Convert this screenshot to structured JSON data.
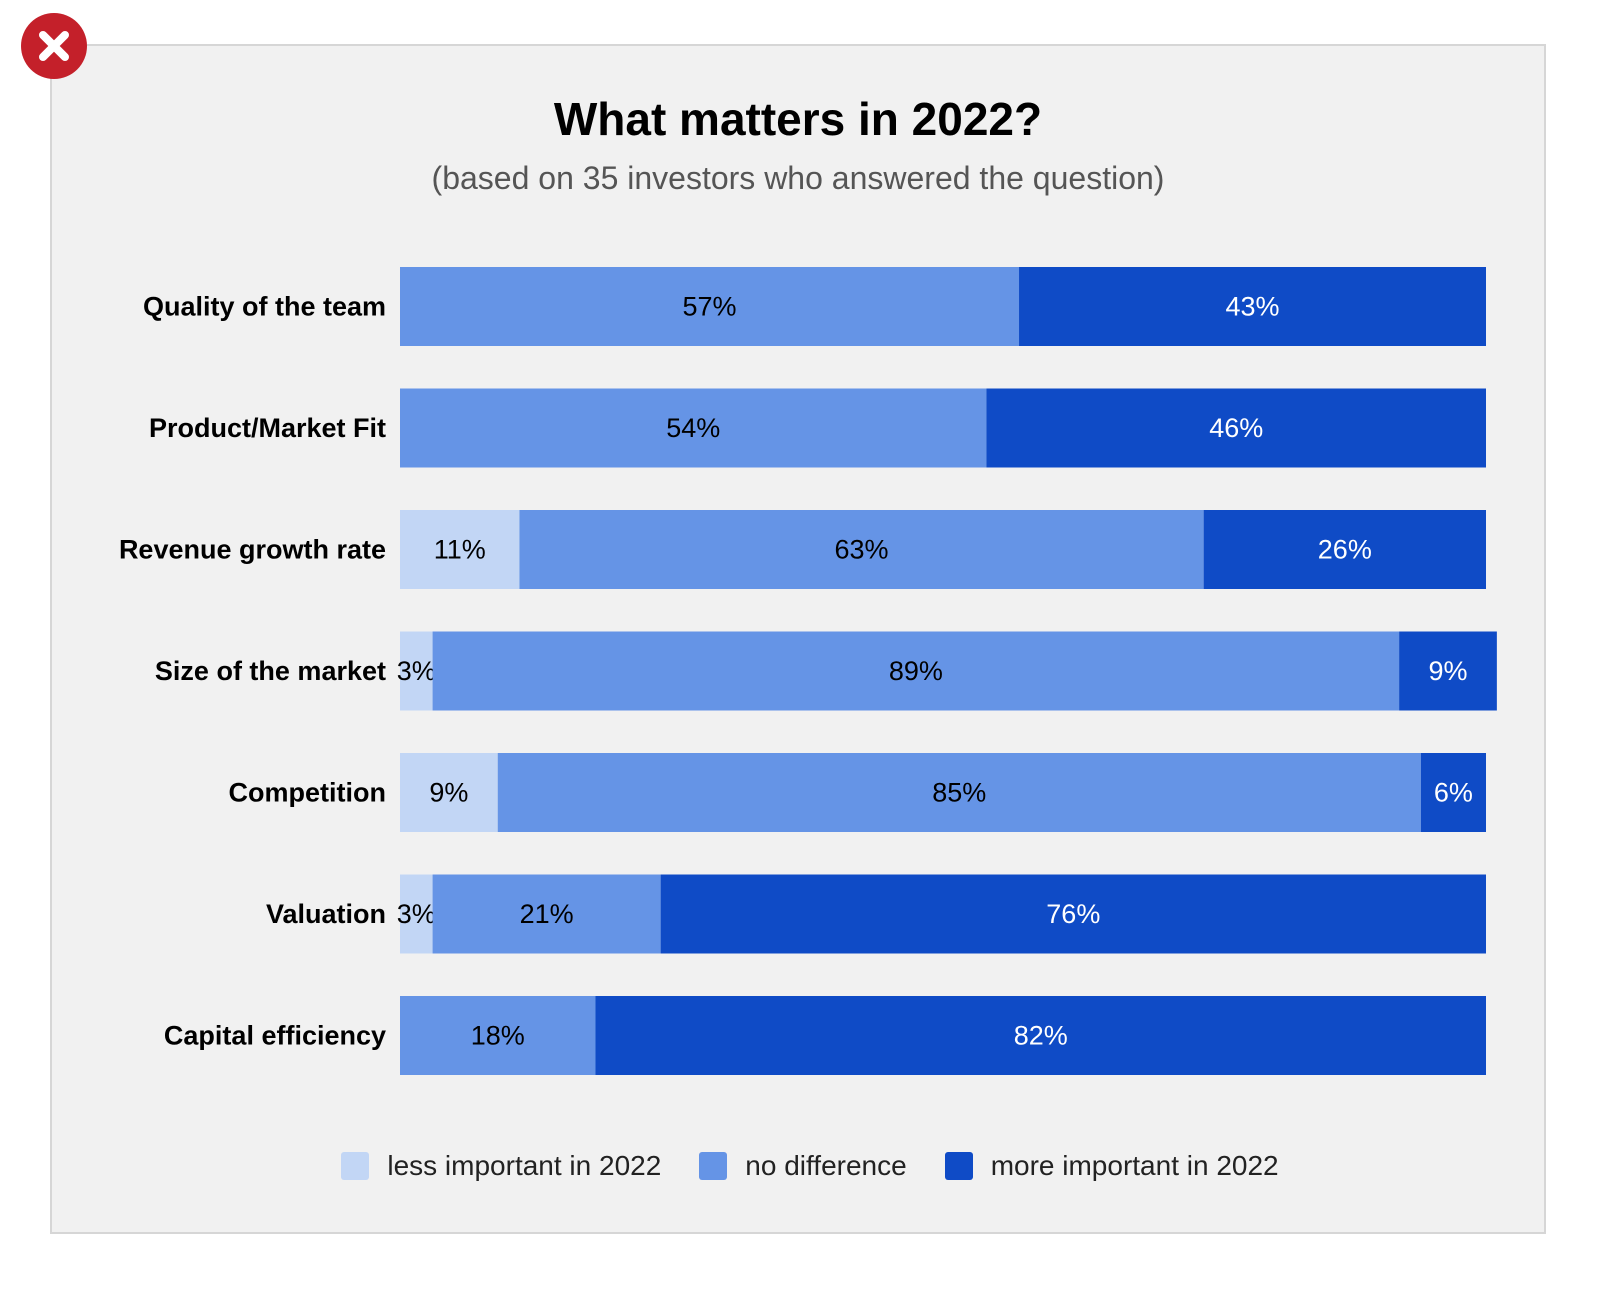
{
  "close_icon": "close-x-icon",
  "colors": {
    "less": "#c2d6f5",
    "none": "#6594e6",
    "more": "#0f4bc6",
    "close_bg": "#c4202a"
  },
  "chart_data": {
    "type": "bar",
    "orientation": "horizontal",
    "stacked": true,
    "title": "What matters in 2022?",
    "subtitle": "(based on 35 investors who answered the question)",
    "categories": [
      "Quality of the team",
      "Product/Market Fit",
      "Revenue growth rate",
      "Size of the market",
      "Competition",
      "Valuation",
      "Capital efficiency"
    ],
    "series": [
      {
        "name": "less important in 2022",
        "values": [
          0,
          0,
          11,
          3,
          9,
          3,
          0
        ]
      },
      {
        "name": "no difference",
        "values": [
          57,
          54,
          63,
          89,
          85,
          21,
          18
        ]
      },
      {
        "name": "more important in 2022",
        "values": [
          43,
          46,
          26,
          9,
          6,
          76,
          82
        ]
      }
    ],
    "value_suffix": "%",
    "xlim": [
      0,
      100
    ],
    "grid": false,
    "legend": "bottom"
  }
}
